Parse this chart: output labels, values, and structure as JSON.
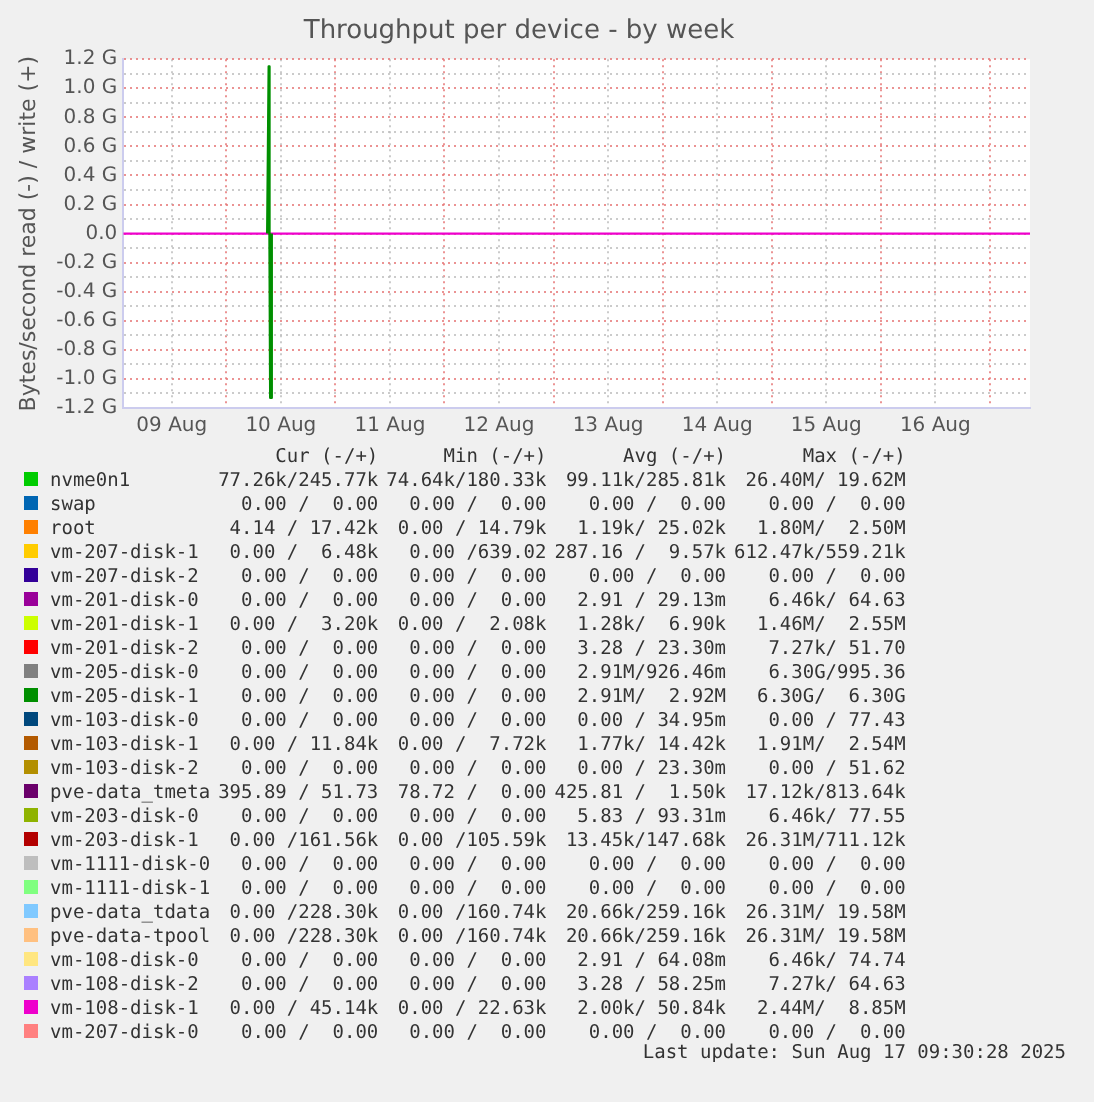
{
  "chart_data": {
    "type": "line",
    "title": "Throughput per device - by week",
    "ylabel": "Bytes/second read (-) / write (+)",
    "xlim": [
      "2025-08-09T01:20",
      "2025-08-17T08:50"
    ],
    "xticks": [
      {
        "value": "2025-08-09T12:00",
        "label": "09 Aug"
      },
      {
        "value": "2025-08-10T00:00",
        "label": null
      },
      {
        "value": "2025-08-10T12:00",
        "label": "10 Aug"
      },
      {
        "value": "2025-08-11T00:00",
        "label": null
      },
      {
        "value": "2025-08-11T12:00",
        "label": "11 Aug"
      },
      {
        "value": "2025-08-12T00:00",
        "label": null
      },
      {
        "value": "2025-08-12T12:00",
        "label": "12 Aug"
      },
      {
        "value": "2025-08-13T00:00",
        "label": null
      },
      {
        "value": "2025-08-13T12:00",
        "label": "13 Aug"
      },
      {
        "value": "2025-08-14T00:00",
        "label": null
      },
      {
        "value": "2025-08-14T12:00",
        "label": "14 Aug"
      },
      {
        "value": "2025-08-15T00:00",
        "label": null
      },
      {
        "value": "2025-08-15T12:00",
        "label": "15 Aug"
      },
      {
        "value": "2025-08-16T00:00",
        "label": null
      },
      {
        "value": "2025-08-16T12:00",
        "label": "16 Aug"
      },
      {
        "value": "2025-08-17T00:00",
        "label": null
      }
    ],
    "ylim": [
      -1.2,
      1.2
    ],
    "yticks": [
      {
        "value": -1.2,
        "label": "-1.2 G"
      },
      {
        "value": -1.1,
        "label": null
      },
      {
        "value": -1.0,
        "label": "-1.0 G"
      },
      {
        "value": -0.9,
        "label": null
      },
      {
        "value": -0.8,
        "label": "-0.8 G"
      },
      {
        "value": -0.7,
        "label": null
      },
      {
        "value": -0.6,
        "label": "-0.6 G"
      },
      {
        "value": -0.5,
        "label": null
      },
      {
        "value": -0.4,
        "label": "-0.4 G"
      },
      {
        "value": -0.3,
        "label": null
      },
      {
        "value": -0.2,
        "label": "-0.2 G"
      },
      {
        "value": -0.1,
        "label": null
      },
      {
        "value": 0,
        "label": "0.0"
      },
      {
        "value": 0.1,
        "label": null
      },
      {
        "value": 0.2,
        "label": "0.2 G"
      },
      {
        "value": 0.3,
        "label": null
      },
      {
        "value": 0.4,
        "label": "0.4 G"
      },
      {
        "value": 0.5,
        "label": null
      },
      {
        "value": 0.6,
        "label": "0.6 G"
      },
      {
        "value": 0.7,
        "label": null
      },
      {
        "value": 0.8,
        "label": "0.8 G"
      },
      {
        "value": 0.9,
        "label": null
      },
      {
        "value": 1.0,
        "label": "1.0 G"
      },
      {
        "value": 1.1,
        "label": null
      },
      {
        "value": 1.2,
        "label": "1.2 G"
      }
    ],
    "grid": true,
    "legend": "bottom",
    "marker": "none",
    "line_style": "solid",
    "x": [
      "2025-08-09T01:20",
      "2025-08-17T08:50"
    ],
    "series": [
      {
        "name": "nvme0n1",
        "color": "#00cc00",
        "values": [
          null,
          null
        ]
      },
      {
        "name": "swap",
        "color": "#0066b3",
        "values": [
          null,
          null
        ]
      },
      {
        "name": "root",
        "color": "#ff8000",
        "values": [
          null,
          null
        ]
      },
      {
        "name": "vm-207-disk-1",
        "color": "#ffcc00",
        "values": [
          null,
          null
        ]
      },
      {
        "name": "vm-207-disk-2",
        "color": "#330099",
        "values": [
          null,
          null
        ]
      },
      {
        "name": "vm-201-disk-0",
        "color": "#990099",
        "values": [
          null,
          null
        ]
      },
      {
        "name": "vm-201-disk-1",
        "color": "#ccff00",
        "values": [
          null,
          null
        ]
      },
      {
        "name": "vm-201-disk-2",
        "color": "#ff0000",
        "values": [
          null,
          null
        ]
      },
      {
        "name": "vm-205-disk-0",
        "color": "#808080",
        "values": [
          null,
          null
        ]
      },
      {
        "name": "vm-205-disk-1",
        "color": "#008f00",
        "x": [
          "2025-08-10T09:00",
          "2025-08-10T09:20",
          "2025-08-10T09:30",
          "2025-08-10T09:40",
          "2025-08-10T10:00"
        ],
        "values": [
          0,
          1.15,
          0,
          -1.13,
          0
        ]
      },
      {
        "name": "vm-103-disk-0",
        "color": "#00487d",
        "values": [
          null,
          null
        ]
      },
      {
        "name": "vm-103-disk-1",
        "color": "#b35a00",
        "values": [
          null,
          null
        ]
      },
      {
        "name": "vm-103-disk-2",
        "color": "#b38f00",
        "values": [
          null,
          null
        ]
      },
      {
        "name": "pve-data_tmeta",
        "color": "#6b006b",
        "values": [
          null,
          null
        ]
      },
      {
        "name": "vm-203-disk-0",
        "color": "#8fb300",
        "values": [
          null,
          null
        ]
      },
      {
        "name": "vm-203-disk-1",
        "color": "#b30000",
        "values": [
          null,
          null
        ]
      },
      {
        "name": "vm-1111-disk-0",
        "color": "#bebebe",
        "values": [
          null,
          null
        ]
      },
      {
        "name": "vm-1111-disk-1",
        "color": "#80ff80",
        "values": [
          null,
          null
        ]
      },
      {
        "name": "pve-data_tdata",
        "color": "#80c9ff",
        "values": [
          null,
          null
        ]
      },
      {
        "name": "pve-data-tpool",
        "color": "#ffc080",
        "values": [
          null,
          null
        ]
      },
      {
        "name": "vm-108-disk-0",
        "color": "#ffe680",
        "values": [
          null,
          null
        ]
      },
      {
        "name": "vm-108-disk-2",
        "color": "#aa80ff",
        "values": [
          null,
          null
        ]
      },
      {
        "name": "vm-108-disk-1",
        "color": "#ee00cc",
        "values": [
          0,
          0
        ]
      },
      {
        "name": "vm-207-disk-0",
        "color": "#ff8080",
        "values": [
          null,
          null
        ]
      }
    ],
    "annotations": [
      "Cur (-/+)",
      "Min (-/+)",
      "Avg (-/+)",
      "Max (-/+)",
      "77.26k/245.77k",
      "74.64k/180.33k",
      "99.11k/285.81k",
      "26.40M/ 19.62M",
      "0.00 /  0.00",
      "0.00 /  0.00",
      "0.00 /  0.00",
      "0.00 /  0.00",
      "4.14 / 17.42k",
      "0.00 / 14.79k",
      "1.19k/ 25.02k",
      "1.80M/  2.50M",
      "0.00 /  6.48k",
      "0.00 /639.02",
      "287.16 /  9.57k",
      "612.47k/559.21k",
      "0.00 /  0.00",
      "0.00 /  0.00",
      "0.00 /  0.00",
      "0.00 /  0.00",
      "0.00 /  0.00",
      "0.00 /  0.00",
      "2.91 / 29.13m",
      "6.46k/ 64.63",
      "0.00 /  3.20k",
      "0.00 /  2.08k",
      "1.28k/  6.90k",
      "1.46M/  2.55M",
      "0.00 /  0.00",
      "0.00 /  0.00",
      "3.28 / 23.30m",
      "7.27k/ 51.70",
      "0.00 /  0.00",
      "0.00 /  0.00",
      "2.91M/926.46m",
      "6.30G/995.36",
      "0.00 /  0.00",
      "0.00 /  0.00",
      "2.91M/  2.92M",
      "6.30G/  6.30G",
      "0.00 /  0.00",
      "0.00 /  0.00",
      "0.00 / 34.95m",
      "0.00 / 77.43",
      "0.00 / 11.84k",
      "0.00 /  7.72k",
      "1.77k/ 14.42k",
      "1.91M/  2.54M",
      "0.00 /  0.00",
      "0.00 /  0.00",
      "0.00 / 23.30m",
      "0.00 / 51.62",
      "395.89 / 51.73",
      "78.72 /  0.00",
      "425.81 /  1.50k",
      "17.12k/813.64k",
      "0.00 /  0.00",
      "0.00 /  0.00",
      "5.83 / 93.31m",
      "6.46k/ 77.55",
      "0.00 /161.56k",
      "0.00 /105.59k",
      "13.45k/147.68k",
      "26.31M/711.12k",
      "0.00 /  0.00",
      "0.00 /  0.00",
      "0.00 /  0.00",
      "0.00 /  0.00",
      "0.00 /  0.00",
      "0.00 /  0.00",
      "0.00 /  0.00",
      "0.00 /  0.00",
      "0.00 /228.30k",
      "0.00 /160.74k",
      "20.66k/259.16k",
      "26.31M/ 19.58M",
      "0.00 /228.30k",
      "0.00 /160.74k",
      "20.66k/259.16k",
      "26.31M/ 19.58M",
      "0.00 /  0.00",
      "0.00 /  0.00",
      "2.91 / 64.08m",
      "6.46k/ 74.74",
      "0.00 /  0.00",
      "0.00 /  0.00",
      "3.28 / 58.25m",
      "7.27k/ 64.63",
      "0.00 / 45.14k",
      "0.00 / 22.63k",
      "2.00k/ 50.84k",
      "2.44M/  8.85M",
      "0.00 /  0.00",
      "0.00 /  0.00",
      "0.00 /  0.00",
      "0.00 /  0.00",
      "Last update: Sun Aug 17 09:30:28 2025"
    ]
  }
}
